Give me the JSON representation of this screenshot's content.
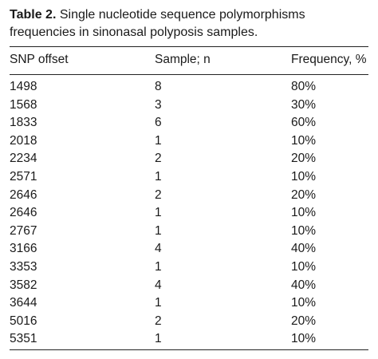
{
  "caption": {
    "label": "Table 2.",
    "text": "Single nucleotide sequence polymorphisms frequencies in sinonasal polyposis samples."
  },
  "table": {
    "headers": [
      "SNP offset",
      "Sample; n",
      "Frequency, %"
    ],
    "rows": [
      [
        "1498",
        "8",
        "80%"
      ],
      [
        "1568",
        "3",
        "30%"
      ],
      [
        "1833",
        "6",
        "60%"
      ],
      [
        "2018",
        "1",
        "10%"
      ],
      [
        "2234",
        "2",
        "20%"
      ],
      [
        "2571",
        "1",
        "10%"
      ],
      [
        "2646",
        "2",
        "20%"
      ],
      [
        "2646",
        "1",
        "10%"
      ],
      [
        "2767",
        "1",
        "10%"
      ],
      [
        "3166",
        "4",
        "40%"
      ],
      [
        "3353",
        "1",
        "10%"
      ],
      [
        "3582",
        "4",
        "40%"
      ],
      [
        "3644",
        "1",
        "10%"
      ],
      [
        "5016",
        "2",
        "20%"
      ],
      [
        "5351",
        "1",
        "10%"
      ]
    ]
  }
}
